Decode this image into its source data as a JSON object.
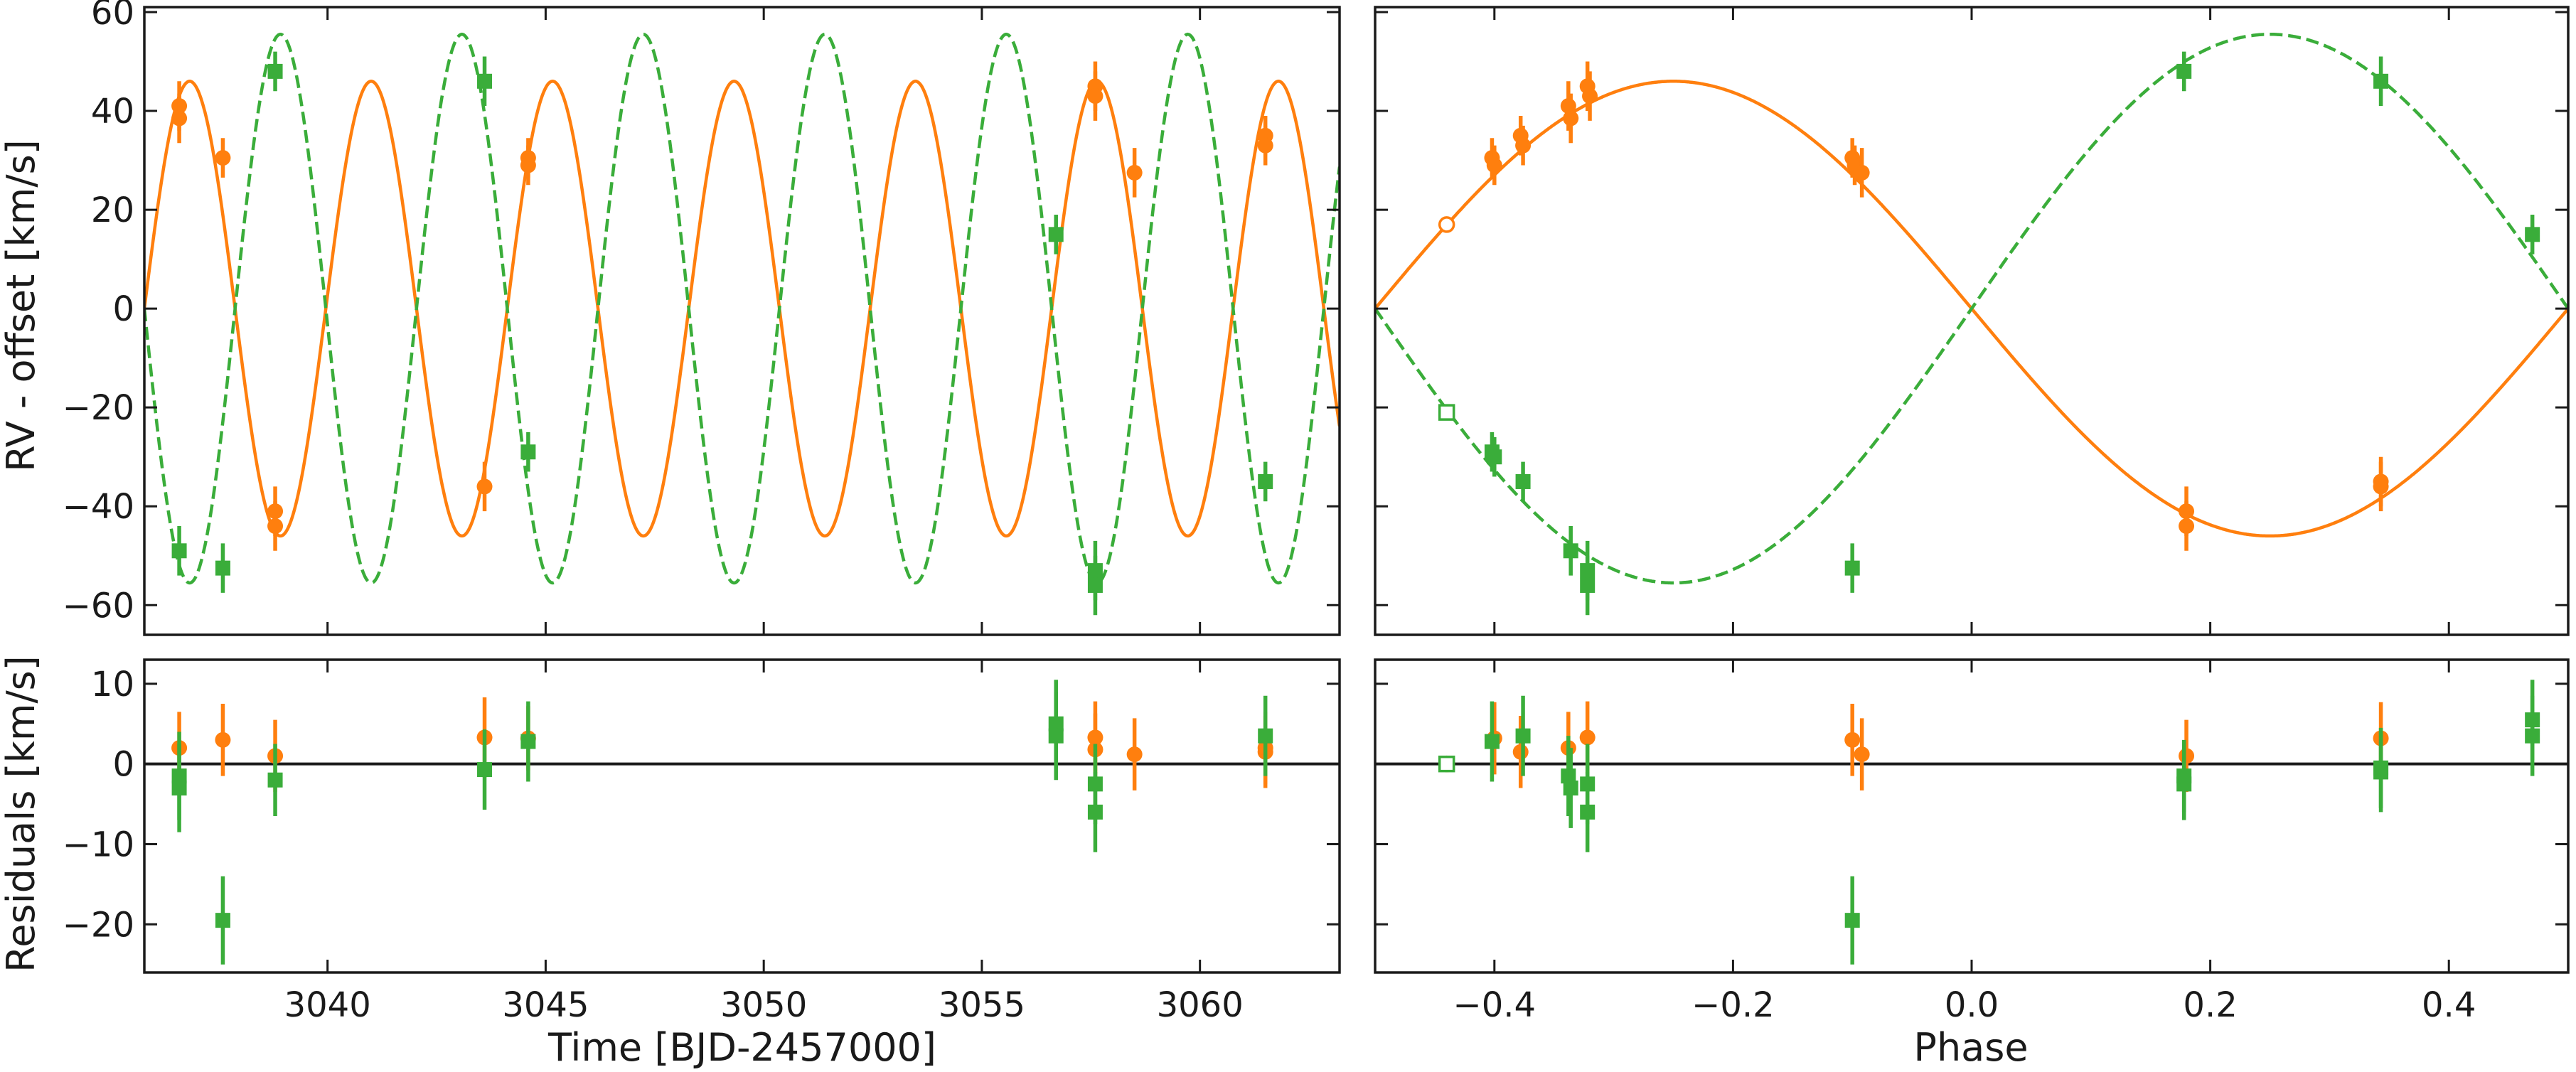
{
  "colors": {
    "primary": "#ff7f0e",
    "secondary": "#3aad3a",
    "axis": "#1a1a1a"
  },
  "labels": {
    "ylabel_rv": "RV - offset [km/s]",
    "ylabel_res": "Residuals [km/s]",
    "xlabel_time": "Time [BJD-2457000]",
    "xlabel_phase": "Phase"
  },
  "chart_data": [
    {
      "id": "rv-time",
      "type": "scatter",
      "xlabel": "",
      "ylabel": "RV - offset [km/s]",
      "xlim": [
        3035.8,
        3063.2
      ],
      "ylim": [
        -66,
        61
      ],
      "xticks": [
        3040,
        3045,
        3050,
        3055,
        3060
      ],
      "yticks": [
        -60,
        -40,
        -20,
        0,
        20,
        40,
        60
      ],
      "ytick_labels": [
        "−60",
        "−40",
        "−20",
        "0",
        "20",
        "40",
        "60"
      ],
      "models": [
        {
          "series": "primary",
          "style": "solid",
          "K": 46,
          "period": 4.16,
          "t_zero": 3035.8,
          "sign": 1
        },
        {
          "series": "secondary",
          "style": "dashed",
          "K": 55.5,
          "period": 4.16,
          "t_zero": 3035.8,
          "sign": -1
        }
      ],
      "series": [
        {
          "series": "primary",
          "marker": "circle",
          "x": [
            3036.6,
            3036.6,
            3037.6,
            3038.8,
            3038.8,
            3043.6,
            3044.6,
            3044.6,
            3057.6,
            3057.6,
            3058.5,
            3061.5,
            3061.5
          ],
          "y": [
            41,
            38.5,
            30.5,
            -41,
            -44,
            -36,
            30.5,
            29,
            45,
            43,
            27.5,
            35,
            33
          ],
          "err": [
            5,
            5,
            4,
            5,
            5,
            5,
            4,
            4,
            5,
            5,
            5,
            4,
            4
          ]
        },
        {
          "series": "secondary",
          "marker": "square",
          "x": [
            3036.6,
            3037.6,
            3038.8,
            3043.6,
            3044.6,
            3056.7,
            3057.6,
            3057.6,
            3061.5
          ],
          "y": [
            -49,
            -52.5,
            48,
            46,
            -29,
            15,
            -53,
            -56,
            -35
          ],
          "err": [
            5,
            5,
            4,
            5,
            4,
            4,
            6,
            6,
            4
          ]
        }
      ]
    },
    {
      "id": "rv-phase",
      "type": "scatter",
      "xlabel": "",
      "ylabel": "",
      "xlim": [
        -0.5,
        0.5
      ],
      "ylim": [
        -66,
        61
      ],
      "xticks": [
        -0.4,
        -0.2,
        0.0,
        0.2,
        0.4
      ],
      "yticks": [
        -60,
        -40,
        -20,
        0,
        20,
        40,
        60
      ],
      "models": [
        {
          "series": "primary",
          "style": "solid",
          "K": 46,
          "period": 1,
          "t_zero": -0.5,
          "sign": 1
        },
        {
          "series": "secondary",
          "style": "dashed",
          "K": 55.5,
          "period": 1,
          "t_zero": -0.5,
          "sign": -1
        }
      ],
      "series": [
        {
          "series": "primary",
          "marker": "circle",
          "x": [
            -0.402,
            -0.4,
            -0.378,
            -0.376,
            -0.338,
            -0.336,
            -0.322,
            -0.32,
            -0.1,
            -0.098,
            -0.092,
            0.18,
            0.18,
            0.343,
            0.343
          ],
          "y": [
            30.5,
            29,
            35,
            33,
            41,
            38.5,
            45,
            43,
            30.5,
            29,
            27.5,
            -41,
            -44,
            -36,
            -35
          ],
          "err": [
            4,
            4,
            4,
            4,
            5,
            5,
            5,
            5,
            4,
            4,
            5,
            5,
            5,
            5,
            5
          ]
        },
        {
          "series": "primary",
          "marker": "open-circle",
          "x": [
            -0.44
          ],
          "y": [
            17
          ],
          "err": [
            0
          ]
        },
        {
          "series": "secondary",
          "marker": "square",
          "x": [
            -0.402,
            -0.4,
            -0.376,
            -0.336,
            -0.322,
            -0.322,
            -0.1,
            0.178,
            0.343,
            0.47
          ],
          "y": [
            -29,
            -30,
            -35,
            -49,
            -53,
            -56,
            -52.5,
            48,
            46,
            15
          ],
          "err": [
            4,
            4,
            4,
            5,
            6,
            6,
            5,
            4,
            5,
            4
          ]
        },
        {
          "series": "secondary",
          "marker": "open-square",
          "x": [
            -0.44
          ],
          "y": [
            -21
          ],
          "err": [
            0
          ]
        }
      ]
    },
    {
      "id": "res-time",
      "type": "scatter",
      "xlabel": "Time [BJD-2457000]",
      "ylabel": "Residuals [km/s]",
      "xlim": [
        3035.8,
        3063.2
      ],
      "ylim": [
        -26,
        13
      ],
      "xticks": [
        3040,
        3045,
        3050,
        3055,
        3060
      ],
      "xtick_labels": [
        "3040",
        "3045",
        "3050",
        "3055",
        "3060"
      ],
      "yticks": [
        -20,
        -10,
        0,
        10
      ],
      "ytick_labels": [
        "−20",
        "−10",
        "0",
        "10"
      ],
      "zero_line": true,
      "series": [
        {
          "series": "primary",
          "marker": "circle",
          "x": [
            3036.6,
            3037.6,
            3038.8,
            3043.6,
            3044.6,
            3057.6,
            3057.6,
            3058.5,
            3061.5,
            3061.5
          ],
          "y": [
            2,
            3,
            1,
            3.3,
            3.2,
            3.3,
            1.8,
            1.2,
            1.5,
            2
          ],
          "err": [
            4.5,
            4.5,
            4.5,
            5,
            4,
            4.5,
            4.5,
            4.5,
            4.5,
            4.5
          ]
        },
        {
          "series": "secondary",
          "marker": "square",
          "x": [
            3036.6,
            3036.6,
            3037.6,
            3038.8,
            3043.6,
            3044.6,
            3056.7,
            3056.7,
            3057.6,
            3057.6,
            3061.5
          ],
          "y": [
            -1.5,
            -3,
            -19.5,
            -2,
            -0.7,
            2.8,
            5,
            3.5,
            -2.5,
            -6,
            3.5
          ],
          "err": [
            5.5,
            5.5,
            5.5,
            4.5,
            5,
            5,
            5.5,
            5.5,
            5,
            5,
            5
          ]
        }
      ]
    },
    {
      "id": "res-phase",
      "type": "scatter",
      "xlabel": "Phase",
      "ylabel": "",
      "xlim": [
        -0.5,
        0.5
      ],
      "ylim": [
        -26,
        13
      ],
      "xticks": [
        -0.4,
        -0.2,
        0.0,
        0.2,
        0.4
      ],
      "xtick_labels": [
        "−0.4",
        "−0.2",
        "0.0",
        "0.2",
        "0.4"
      ],
      "yticks": [
        -20,
        -10,
        0,
        10
      ],
      "zero_line": true,
      "series": [
        {
          "series": "primary",
          "marker": "circle",
          "x": [
            -0.4,
            -0.378,
            -0.338,
            -0.322,
            -0.1,
            -0.092,
            0.18,
            0.343
          ],
          "y": [
            3.2,
            1.5,
            2,
            3.3,
            3,
            1.2,
            1,
            3.2
          ],
          "err": [
            4.5,
            4.5,
            4.5,
            4.5,
            4.5,
            4.5,
            4.5,
            4.5
          ]
        },
        {
          "series": "primary",
          "marker": "open-circle",
          "x": [
            -0.44
          ],
          "y": [
            0
          ],
          "err": [
            0
          ]
        },
        {
          "series": "secondary",
          "marker": "square",
          "x": [
            -0.402,
            -0.376,
            -0.338,
            -0.336,
            -0.322,
            -0.322,
            -0.1,
            0.178,
            0.178,
            0.343,
            0.343,
            0.47,
            0.47
          ],
          "y": [
            2.8,
            3.5,
            -1.5,
            -3,
            -2.5,
            -6,
            -19.5,
            -1.5,
            -2.5,
            -0.5,
            -1,
            3.5,
            5.5
          ],
          "err": [
            5,
            5,
            5,
            5,
            5,
            5,
            5.5,
            4.5,
            4.5,
            5,
            5,
            5,
            5
          ]
        },
        {
          "series": "secondary",
          "marker": "open-square",
          "x": [
            -0.44
          ],
          "y": [
            0
          ],
          "err": [
            0
          ]
        }
      ]
    }
  ]
}
